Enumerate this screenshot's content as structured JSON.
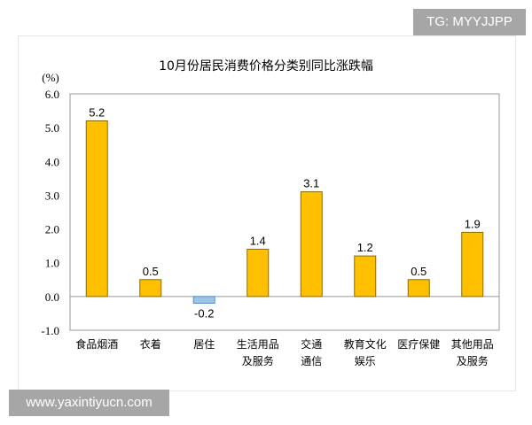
{
  "watermarks": {
    "top": "TG: MYYJJPP",
    "bottom": "www.yaxintiyucn.com"
  },
  "chart_data": {
    "type": "bar",
    "title": "10月份居民消费价格分类别同比涨跌幅",
    "ylabel": "(%)",
    "xlabel": "",
    "ylim": [
      -1.0,
      6.0
    ],
    "yticks": [
      "6.0",
      "5.0",
      "4.0",
      "3.0",
      "2.0",
      "1.0",
      "0.0",
      "-1.0"
    ],
    "grid": false,
    "categories": [
      [
        "食品烟酒"
      ],
      [
        "衣着"
      ],
      [
        "居住"
      ],
      [
        "生活用品",
        "及服务"
      ],
      [
        "交通",
        "通信"
      ],
      [
        "教育文化",
        "娱乐"
      ],
      [
        "医疗保健"
      ],
      [
        "其他用品",
        "及服务"
      ]
    ],
    "values": [
      5.2,
      0.5,
      -0.2,
      1.4,
      3.1,
      1.2,
      0.5,
      1.9
    ],
    "value_labels": [
      "5.2",
      "0.5",
      "-0.2",
      "1.4",
      "3.1",
      "1.2",
      "0.5",
      "1.9"
    ],
    "colors": {
      "positive": "#FFC000",
      "negative": "#9DC3E6",
      "positive_stroke": "#8a6d00",
      "negative_stroke": "#5b8fc7",
      "axis": "#999999"
    }
  }
}
